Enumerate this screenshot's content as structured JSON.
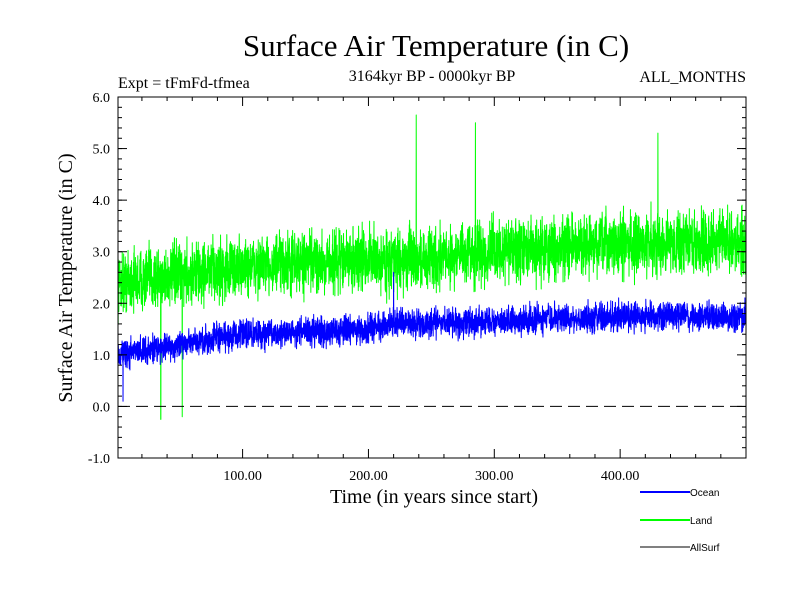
{
  "chart_data": {
    "type": "line",
    "title": "Surface Air Temperature (in C)",
    "subtitle_left": "Expt = tFmFd-tfmea",
    "subtitle_center": "3164kyr BP - 0000kyr BP",
    "subtitle_right": "ALL_MONTHS",
    "xlabel": "Time (in years since start)",
    "ylabel": "Surface Air Temperature (in C)",
    "xlim": [
      1,
      500
    ],
    "ylim": [
      -1.0,
      6.0
    ],
    "xticks": [
      100,
      200,
      300,
      400
    ],
    "xtick_labels": [
      "100.00",
      "200.00",
      "300.00",
      "400.00"
    ],
    "yticks": [
      -1,
      0,
      1,
      2,
      3,
      4,
      5,
      6
    ],
    "ytick_labels": [
      "-1.0",
      "0.0",
      "1.0",
      "2.0",
      "3.0",
      "4.0",
      "5.0",
      "6.0"
    ],
    "reference_line": {
      "y": 0.0,
      "style": "dashed"
    },
    "series": [
      {
        "name": "Land",
        "color": "#00ff00",
        "trend": {
          "x": [
            1,
            100,
            200,
            220,
            300,
            400,
            500
          ],
          "y": [
            2.4,
            2.7,
            2.85,
            2.8,
            3.0,
            3.15,
            3.2
          ]
        },
        "noise_amplitude": 0.75,
        "extremes": [
          {
            "x": 35,
            "y": -0.25
          },
          {
            "x": 52,
            "y": -0.2
          },
          {
            "x": 238,
            "y": 5.65
          },
          {
            "x": 285,
            "y": 5.5
          },
          {
            "x": 430,
            "y": 5.3
          }
        ]
      },
      {
        "name": "Ocean",
        "color": "#0000ff",
        "trend": {
          "x": [
            1,
            100,
            200,
            220,
            300,
            400,
            500
          ],
          "y": [
            1.0,
            1.4,
            1.5,
            1.6,
            1.65,
            1.75,
            1.75
          ]
        },
        "noise_amplitude": 0.35,
        "extremes": [
          {
            "x": 220,
            "y": 2.6
          },
          {
            "x": 5,
            "y": 0.1
          }
        ]
      },
      {
        "name": "AllSurf",
        "color": "#000000",
        "values": []
      }
    ],
    "legend": {
      "placement": "bottom-right",
      "entries": [
        {
          "label": "Ocean",
          "color": "#0000ff"
        },
        {
          "label": "Land",
          "color": "#00ff00"
        },
        {
          "label": "AllSurf",
          "color": "#000000"
        }
      ]
    }
  }
}
